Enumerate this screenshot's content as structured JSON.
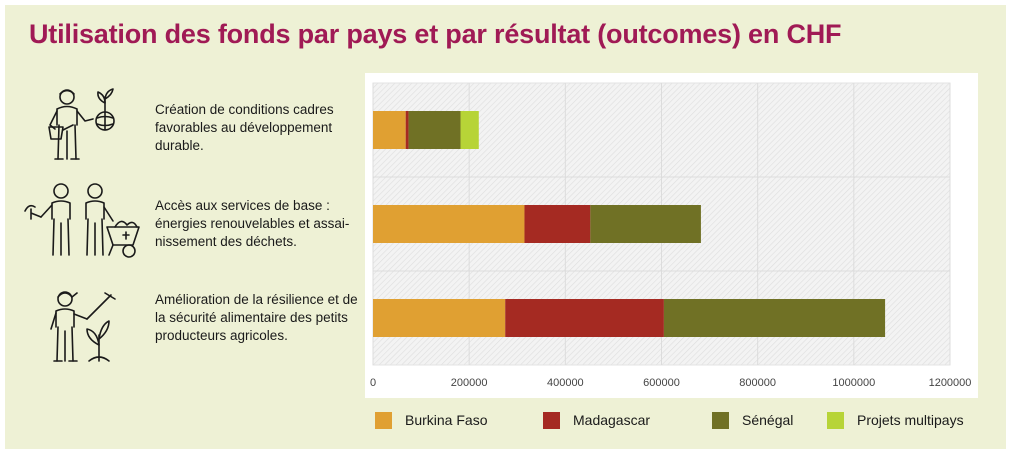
{
  "title": "Utilisation des fonds par pays et par résultat (outcomes) en CHF",
  "rows": [
    {
      "label": "Création de conditions cadres favorables au développement durable."
    },
    {
      "label": "Accès aux services de base : énergies renouvelables et assai-nissement des déchets."
    },
    {
      "label": "Amélioration de la résilience et de la sécurité alimentaire des petits producteurs agricoles."
    }
  ],
  "chart_data": {
    "type": "bar",
    "orientation": "horizontal",
    "stacked": true,
    "categories": [
      "Création de conditions cadres favorables au développement durable.",
      "Accès aux services de base : énergies renouvelables et assai-nissement des déchets.",
      "Amélioration de la résilience et de la sécurité alimentaire des petits producteurs agricoles."
    ],
    "series": [
      {
        "name": "Burkina Faso",
        "color": "#e0a032",
        "values": [
          68000,
          315000,
          275000
        ]
      },
      {
        "name": "Madagascar",
        "color": "#a52a22",
        "values": [
          6000,
          137000,
          330000
        ]
      },
      {
        "name": "Sénégal",
        "color": "#707125",
        "values": [
          108000,
          230000,
          460000
        ]
      },
      {
        "name": "Projets multipays",
        "color": "#b7d437",
        "values": [
          38000,
          0,
          0
        ]
      }
    ],
    "xlim": [
      0,
      1200000
    ],
    "xticks": [
      "0",
      "200000",
      "400000",
      "600000",
      "800000",
      "1000000",
      "1200000"
    ],
    "grid": true,
    "legend": "bottom"
  }
}
